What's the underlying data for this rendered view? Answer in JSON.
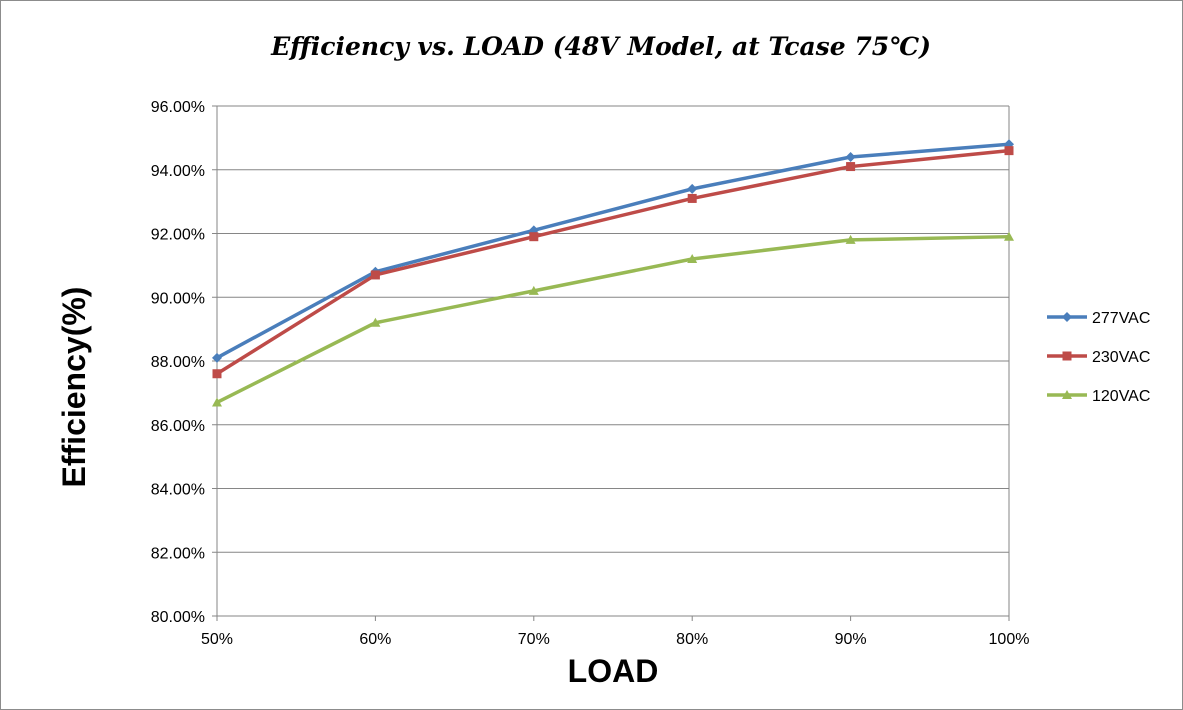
{
  "chart_data": {
    "type": "line",
    "title": "Efficiency vs. LOAD (48V Model, at Tcase 75℃)",
    "xlabel": "LOAD",
    "ylabel": "Efficiency(%)",
    "categories": [
      "50%",
      "60%",
      "70%",
      "80%",
      "90%",
      "100%"
    ],
    "ylim": [
      80,
      96
    ],
    "ytick_step": 2,
    "ytick_labels": [
      "80.00%",
      "82.00%",
      "84.00%",
      "86.00%",
      "88.00%",
      "90.00%",
      "92.00%",
      "94.00%",
      "96.00%"
    ],
    "grid": true,
    "legend_position": "right",
    "series": [
      {
        "name": "277VAC",
        "color": "#4a7ebb",
        "marker": "diamond",
        "values": [
          88.1,
          90.8,
          92.1,
          93.4,
          94.4,
          94.8
        ]
      },
      {
        "name": "230VAC",
        "color": "#be4b48",
        "marker": "square",
        "values": [
          87.6,
          90.7,
          91.9,
          93.1,
          94.1,
          94.6
        ]
      },
      {
        "name": "120VAC",
        "color": "#98b954",
        "marker": "triangle",
        "values": [
          86.7,
          89.2,
          90.2,
          91.2,
          91.8,
          91.9
        ]
      }
    ]
  }
}
